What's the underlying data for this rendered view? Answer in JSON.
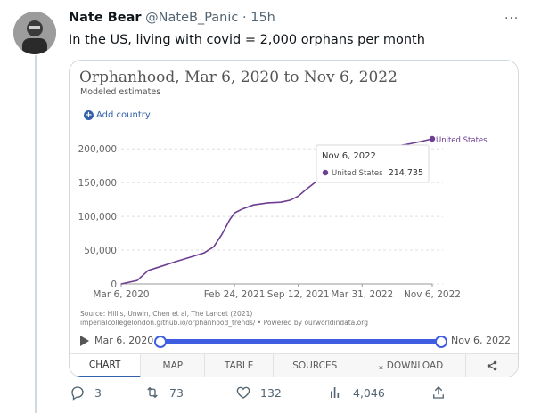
{
  "tweet": {
    "author_name": "Nate Bear",
    "handle": "@NateB_Panic",
    "time": "15h",
    "separator": "·",
    "more": "···",
    "text": "In the US, living with covid = 2,000 orphans per month"
  },
  "card": {
    "title": "Orphanhood, Mar 6, 2020 to Nov 6, 2022",
    "subtitle": "Modeled estimates",
    "add_country": "Add country",
    "source_line1": "Source: Hillis, Unwin, Chen et al, The Lancet (2021)",
    "source_line2": "imperialcollegelondon.github.io/orphanhood_trends/ • Powered by ourworldindata.org",
    "tooltip": {
      "date": "Nov 6, 2022",
      "series": "United States",
      "value": "214,735"
    },
    "timeline": {
      "start": "Mar 6, 2020",
      "end": "Nov 6, 2022"
    },
    "tabs": [
      "CHART",
      "MAP",
      "TABLE",
      "SOURCES",
      "DOWNLOAD"
    ],
    "share_icon": "share-icon",
    "line_color": "#6d3e91"
  },
  "chart_data": {
    "type": "line",
    "title": "Orphanhood, Mar 6, 2020 to Nov 6, 2022",
    "subtitle": "Modeled estimates",
    "x_tick_labels": [
      "Mar 6, 2020",
      "Feb 24, 2021",
      "Sep 12, 2021",
      "Mar 31, 2022",
      "Nov 6, 2022"
    ],
    "x_tick_days": [
      0,
      355,
      555,
      755,
      975
    ],
    "y_ticks": [
      0,
      50000,
      100000,
      150000,
      200000
    ],
    "y_tick_labels": [
      "0",
      "50,000",
      "100,000",
      "150,000",
      "200,000"
    ],
    "ylim": [
      0,
      214735
    ],
    "xlim": [
      "2020-03-06",
      "2022-11-06"
    ],
    "grid": true,
    "series": [
      {
        "name": "United States",
        "x": [
          "2020-03-06",
          "2020-04-25",
          "2020-05-30",
          "2020-07-09",
          "2020-08-23",
          "2020-10-12",
          "2020-11-21",
          "2020-12-21",
          "2021-01-15",
          "2021-02-09",
          "2021-02-24",
          "2021-03-21",
          "2021-04-25",
          "2021-06-09",
          "2021-07-19",
          "2021-08-18",
          "2021-09-12",
          "2021-10-07",
          "2021-11-06",
          "2021-12-06",
          "2022-01-05",
          "2022-01-30",
          "2022-02-24",
          "2022-03-31",
          "2022-05-05",
          "2022-06-19",
          "2022-07-29",
          "2022-09-02",
          "2022-10-07",
          "2022-11-06"
        ],
        "values": [
          0,
          5000,
          20000,
          26000,
          33000,
          40000,
          46000,
          55000,
          73000,
          95000,
          105000,
          111000,
          117000,
          120000,
          121000,
          124000,
          130000,
          140000,
          151000,
          160000,
          170000,
          180000,
          188000,
          195000,
          199000,
          202000,
          205000,
          208000,
          211500,
          214735
        ]
      }
    ]
  },
  "actions": {
    "reply_count": "3",
    "retweet_count": "73",
    "like_count": "132",
    "view_count": "4,046"
  }
}
